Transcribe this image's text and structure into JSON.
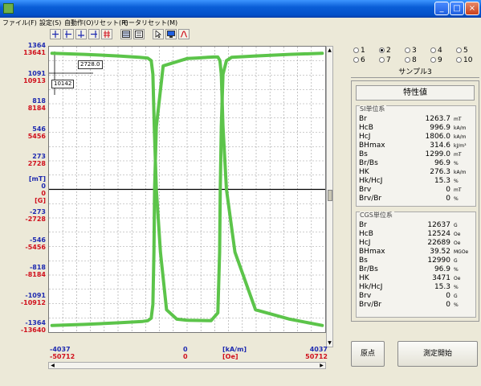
{
  "window": {
    "min_label": "_",
    "max_label": "□",
    "close_label": "×"
  },
  "menu": [
    {
      "label": "ファイル(F)"
    },
    {
      "label": "設定(S)"
    },
    {
      "label": "自動作(O)"
    },
    {
      "label": "リセット(R)"
    },
    {
      "label": "モータリセット(M)"
    }
  ],
  "y_scale": [
    {
      "si": "1364",
      "cgs": "13641"
    },
    {
      "si": "1091",
      "cgs": "10913"
    },
    {
      "si": "818",
      "cgs": "8184"
    },
    {
      "si": "546",
      "cgs": "5456"
    },
    {
      "si": "273",
      "cgs": "2728"
    },
    {
      "si": "[mT]",
      "si2": "0",
      "cgs": "0",
      "cgs2": "[G]"
    },
    {
      "si": "-273",
      "cgs": "-2728"
    },
    {
      "si": "-546",
      "cgs": "-5456"
    },
    {
      "si": "-818",
      "cgs": "-8184"
    },
    {
      "si": "-1091",
      "cgs": "-10912"
    },
    {
      "si": "-1364",
      "cgs": "-13640"
    }
  ],
  "x_scale": {
    "left": {
      "si": "-4037",
      "cgs": "-50712"
    },
    "center": {
      "si": "0",
      "cgs": "0"
    },
    "unit": {
      "si": "[kA/m]",
      "cgs": "[Oe]"
    },
    "right": {
      "si": "4037",
      "cgs": "50712"
    }
  },
  "cursor": {
    "y_value": "2728.0",
    "x_value": "10142"
  },
  "chart_data": {
    "type": "line",
    "title": "",
    "xlabel": "[kA/m] / [Oe]",
    "ylabel": "[mT] / [G]",
    "xlim": [
      -4037,
      4037
    ],
    "ylim": [
      -1364,
      1364
    ],
    "series": [
      {
        "x": [
          -3950,
          -3000,
          -2000,
          -1300,
          -1150,
          -1050,
          -1000,
          -970,
          -950,
          -900,
          -700,
          0,
          300,
          600,
          780,
          900,
          960,
          1000,
          1050,
          1150,
          1400,
          2000,
          3000,
          3950
        ],
        "y": [
          -1300,
          -1290,
          -1275,
          -1262,
          -1255,
          -1230,
          -1100,
          -600,
          0,
          600,
          1180,
          1250,
          1256,
          1262,
          1265,
          1265,
          1230,
          1100,
          600,
          0,
          -600,
          -1150,
          -1240,
          -1300
        ],
        "color": "#5cc44a"
      },
      {
        "x": [
          -3950,
          -3000,
          -2000,
          -1400,
          -1150,
          -1050,
          -1000,
          -960,
          -900,
          -780,
          -600,
          -300,
          0,
          700,
          900,
          950,
          970,
          1000,
          1050,
          1150,
          1300,
          2000,
          3000,
          3950
        ],
        "y": [
          1300,
          1290,
          1275,
          1262,
          1255,
          1230,
          1100,
          600,
          0,
          -600,
          -1150,
          -1240,
          -1250,
          -1255,
          -1180,
          -600,
          0,
          600,
          1100,
          1230,
          1262,
          1275,
          1290,
          1300
        ],
        "color": "#5cc44a"
      }
    ],
    "grid": true
  },
  "radio_options": [
    {
      "label": "1",
      "selected": false
    },
    {
      "label": "2",
      "selected": true
    },
    {
      "label": "3",
      "selected": false
    },
    {
      "label": "4",
      "selected": false
    },
    {
      "label": "5",
      "selected": false
    },
    {
      "label": "6",
      "selected": false
    },
    {
      "label": "7",
      "selected": false
    },
    {
      "label": "8",
      "selected": false
    },
    {
      "label": "9",
      "selected": false
    },
    {
      "label": "10",
      "selected": false
    }
  ],
  "sample_name": "サンプル3",
  "panel": {
    "title": "特性値",
    "si_group": {
      "title": "SI単位系",
      "rows": [
        {
          "name": "Br",
          "value": "1263.7",
          "unit": "mT"
        },
        {
          "name": "HcB",
          "value": "996.9",
          "unit": "kA/m"
        },
        {
          "name": "HcJ",
          "value": "1806.0",
          "unit": "kA/m"
        },
        {
          "name": "BHmax",
          "value": "314.6",
          "unit": "kJ/m³"
        },
        {
          "name": "Bs",
          "value": "1299.0",
          "unit": "mT"
        },
        {
          "name": "Br/Bs",
          "value": "96.9",
          "unit": "%"
        },
        {
          "name": "HK",
          "value": "276.3",
          "unit": "kA/m"
        },
        {
          "name": "Hk/HcJ",
          "value": "15.3",
          "unit": "%"
        },
        {
          "name": "Brv",
          "value": "0",
          "unit": "mT"
        },
        {
          "name": "Brv/Br",
          "value": "0",
          "unit": "%"
        }
      ]
    },
    "cgs_group": {
      "title": "CGS単位系",
      "rows": [
        {
          "name": "Br",
          "value": "12637",
          "unit": "G"
        },
        {
          "name": "HcB",
          "value": "12524",
          "unit": "Oe"
        },
        {
          "name": "HcJ",
          "value": "22689",
          "unit": "Oe"
        },
        {
          "name": "BHmax",
          "value": "39.52",
          "unit": "MGOe"
        },
        {
          "name": "Bs",
          "value": "12990",
          "unit": "G"
        },
        {
          "name": "Br/Bs",
          "value": "96.9",
          "unit": "%"
        },
        {
          "name": "HK",
          "value": "3471",
          "unit": "Oe"
        },
        {
          "name": "Hk/HcJ",
          "value": "15.3",
          "unit": "%"
        },
        {
          "name": "Brv",
          "value": "0",
          "unit": "G"
        },
        {
          "name": "Brv/Br",
          "value": "0",
          "unit": "%"
        }
      ]
    }
  },
  "buttons": {
    "origin": "原点",
    "start": "測定開始"
  }
}
